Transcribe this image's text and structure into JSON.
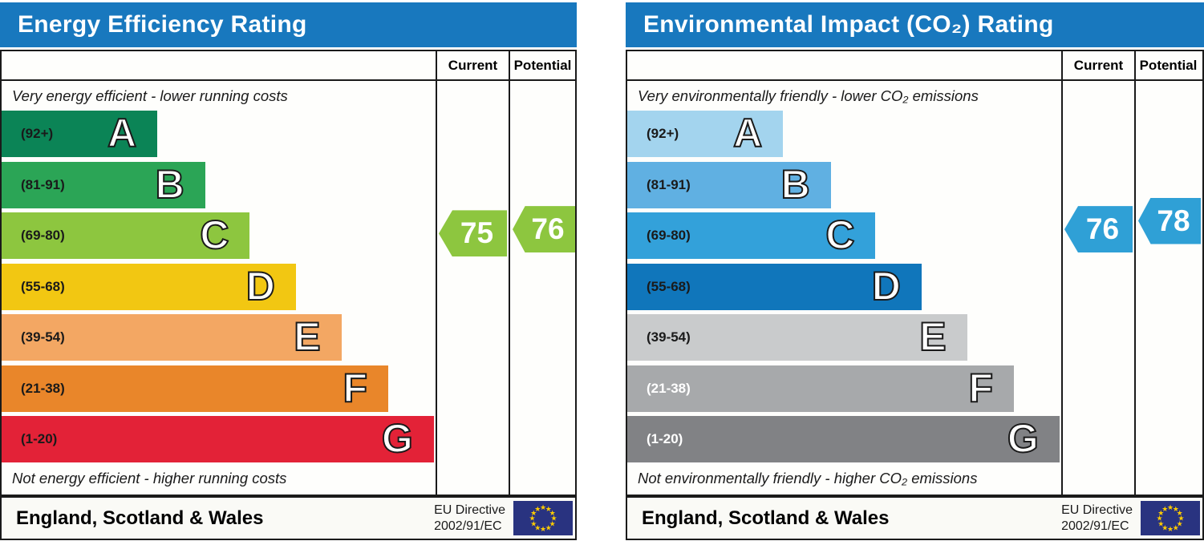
{
  "chart_data": [
    {
      "type": "bar",
      "id": "energy-efficiency",
      "title": "Energy Efficiency Rating",
      "title_bar_color": "#1878be",
      "columns": {
        "current": "Current",
        "potential": "Potential"
      },
      "top_caption": "Very energy efficient - lower running costs",
      "bottom_caption": "Not energy efficient - higher running costs",
      "categories": [
        "A (92+)",
        "B (81-91)",
        "C (69-80)",
        "D (55-68)",
        "E (39-54)",
        "F (21-38)",
        "G (1-20)"
      ],
      "bands": [
        {
          "letter": "A",
          "range_label": "(92+)",
          "min": 92,
          "max": 100,
          "width_pct": 35.9,
          "color": "#0b8456",
          "label_color": "#1a1a1a"
        },
        {
          "letter": "B",
          "range_label": "(81-91)",
          "min": 81,
          "max": 91,
          "width_pct": 46.9,
          "color": "#2ba556",
          "label_color": "#1a1a1a"
        },
        {
          "letter": "C",
          "range_label": "(69-80)",
          "min": 69,
          "max": 80,
          "width_pct": 57.2,
          "color": "#8dc63f",
          "label_color": "#1a1a1a"
        },
        {
          "letter": "D",
          "range_label": "(55-68)",
          "min": 55,
          "max": 68,
          "width_pct": 67.8,
          "color": "#f2c712",
          "label_color": "#1a1a1a"
        },
        {
          "letter": "E",
          "range_label": "(39-54)",
          "min": 39,
          "max": 54,
          "width_pct": 78.3,
          "color": "#f3a763",
          "label_color": "#1a1a1a"
        },
        {
          "letter": "F",
          "range_label": "(21-38)",
          "min": 21,
          "max": 38,
          "width_pct": 89.1,
          "color": "#e9862a",
          "label_color": "#1a1a1a"
        },
        {
          "letter": "G",
          "range_label": "(1-20)",
          "min": 1,
          "max": 20,
          "width_pct": 99.6,
          "color": "#e32237",
          "label_color": "#1a1a1a"
        }
      ],
      "current": {
        "value": 75,
        "band": "C",
        "arrow_color": "#8dc63f"
      },
      "potential": {
        "value": 76,
        "band": "C",
        "arrow_color": "#8dc63f"
      },
      "footer": {
        "region": "England, Scotland & Wales",
        "directive_line1": "EU Directive",
        "directive_line2": "2002/91/EC",
        "flag_color": "#293380",
        "star_color": "#ffcc00"
      }
    },
    {
      "type": "bar",
      "id": "environmental-impact",
      "title": "Environmental Impact (CO₂) Rating",
      "title_bar_color": "#1878be",
      "columns": {
        "current": "Current",
        "potential": "Potential"
      },
      "top_caption": "Very environmentally friendly - lower CO₂ emissions",
      "bottom_caption": "Not environmentally friendly - higher CO₂ emissions",
      "categories": [
        "A (92+)",
        "B (81-91)",
        "C (69-80)",
        "D (55-68)",
        "E (39-54)",
        "F (21-38)",
        "G (1-20)"
      ],
      "bands": [
        {
          "letter": "A",
          "range_label": "(92+)",
          "min": 92,
          "max": 100,
          "width_pct": 35.9,
          "color": "#a3d4ee",
          "label_color": "#1a1a1a"
        },
        {
          "letter": "B",
          "range_label": "(81-91)",
          "min": 81,
          "max": 91,
          "width_pct": 46.9,
          "color": "#60b0e2",
          "label_color": "#1a1a1a"
        },
        {
          "letter": "C",
          "range_label": "(69-80)",
          "min": 69,
          "max": 80,
          "width_pct": 57.2,
          "color": "#33a1da",
          "label_color": "#1a1a1a"
        },
        {
          "letter": "D",
          "range_label": "(55-68)",
          "min": 55,
          "max": 68,
          "width_pct": 67.8,
          "color": "#1076bb",
          "label_color": "#1a1a1a"
        },
        {
          "letter": "E",
          "range_label": "(39-54)",
          "min": 39,
          "max": 54,
          "width_pct": 78.3,
          "color": "#c9cbcc",
          "label_color": "#1a1a1a"
        },
        {
          "letter": "F",
          "range_label": "(21-38)",
          "min": 21,
          "max": 38,
          "width_pct": 89.1,
          "color": "#a7a9ab",
          "label_color": "#ffffff"
        },
        {
          "letter": "G",
          "range_label": "(1-20)",
          "min": 1,
          "max": 20,
          "width_pct": 99.6,
          "color": "#818285",
          "label_color": "#ffffff"
        }
      ],
      "current": {
        "value": 76,
        "band": "C",
        "arrow_color": "#2fa0d6"
      },
      "potential": {
        "value": 78,
        "band": "C",
        "arrow_color": "#2fa0d6"
      },
      "footer": {
        "region": "England, Scotland & Wales",
        "directive_line1": "EU Directive",
        "directive_line2": "2002/91/EC",
        "flag_color": "#293380",
        "star_color": "#ffcc00"
      }
    }
  ]
}
